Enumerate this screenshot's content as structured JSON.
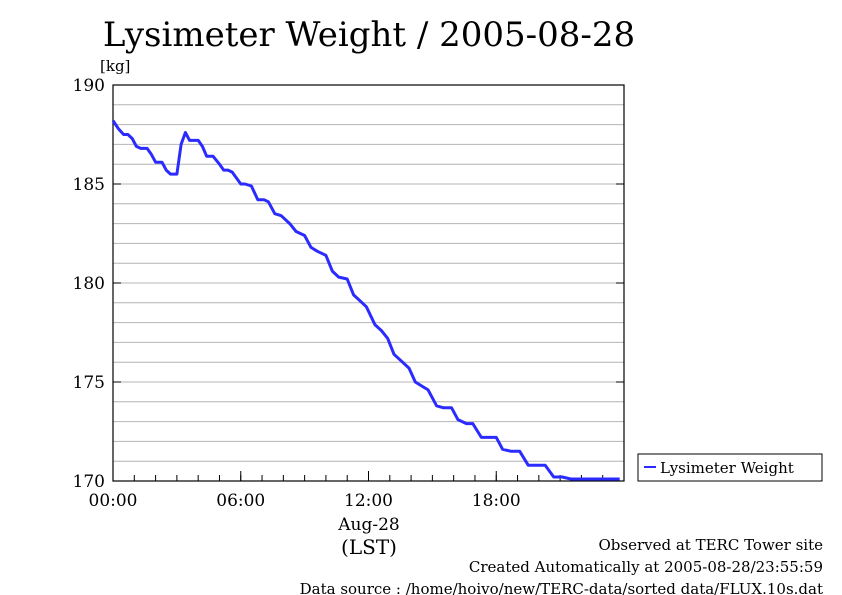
{
  "chart_data": {
    "type": "line",
    "title": "Lysimeter Weight / 2005-08-28",
    "ylabel": "[kg]",
    "xlabel_date": "Aug-28",
    "xlabel_tz": "(LST)",
    "xlim": [
      0,
      24
    ],
    "ylim": [
      170,
      190
    ],
    "x_ticks": [
      {
        "value": 0,
        "label": "00:00"
      },
      {
        "value": 6,
        "label": "06:00"
      },
      {
        "value": 12,
        "label": "12:00"
      },
      {
        "value": 18,
        "label": "18:00"
      }
    ],
    "y_ticks": [
      {
        "value": 170,
        "label": "170"
      },
      {
        "value": 175,
        "label": "175"
      },
      {
        "value": 180,
        "label": "180"
      },
      {
        "value": 185,
        "label": "185"
      },
      {
        "value": 190,
        "label": "190"
      }
    ],
    "y_minor_step": 1,
    "grid": true,
    "legend_position": "right",
    "color": "#2b2bff",
    "series": [
      {
        "name": "Lysimeter Weight",
        "x": [
          0.0,
          0.25,
          0.5,
          0.7,
          0.9,
          1.1,
          1.3,
          1.6,
          1.8,
          2.0,
          2.3,
          2.5,
          2.7,
          3.0,
          3.2,
          3.4,
          3.6,
          3.8,
          4.0,
          4.2,
          4.4,
          4.7,
          5.0,
          5.2,
          5.4,
          5.6,
          6.0,
          6.2,
          6.5,
          6.8,
          7.1,
          7.3,
          7.6,
          7.9,
          8.3,
          8.6,
          9.0,
          9.3,
          9.6,
          10.0,
          10.3,
          10.6,
          11.0,
          11.3,
          11.6,
          11.9,
          12.3,
          12.6,
          12.9,
          13.2,
          13.5,
          13.9,
          14.2,
          14.5,
          14.8,
          15.2,
          15.5,
          15.9,
          16.2,
          16.6,
          16.9,
          17.3,
          17.7,
          18.0,
          18.3,
          18.7,
          19.1,
          19.5,
          19.9,
          20.3,
          20.7,
          21.1,
          21.5,
          21.9,
          22.3,
          22.7,
          23.1,
          23.5,
          23.8
        ],
        "y": [
          188.2,
          187.8,
          187.5,
          187.5,
          187.3,
          186.9,
          186.8,
          186.8,
          186.5,
          186.1,
          186.1,
          185.7,
          185.5,
          185.5,
          187.0,
          187.6,
          187.2,
          187.2,
          187.2,
          186.9,
          186.4,
          186.4,
          186.0,
          185.7,
          185.7,
          185.6,
          185.0,
          185.0,
          184.9,
          184.2,
          184.2,
          184.1,
          183.5,
          183.4,
          183.0,
          182.6,
          182.4,
          181.8,
          181.6,
          181.4,
          180.6,
          180.3,
          180.2,
          179.4,
          179.1,
          178.8,
          177.9,
          177.6,
          177.2,
          176.4,
          176.1,
          175.7,
          175.0,
          174.8,
          174.6,
          173.8,
          173.7,
          173.7,
          173.1,
          172.9,
          172.9,
          172.2,
          172.2,
          172.2,
          171.6,
          171.5,
          171.5,
          170.8,
          170.8,
          170.8,
          170.2,
          170.2,
          170.1,
          170.1,
          170.1,
          170.1,
          170.1,
          170.1,
          170.1
        ]
      }
    ]
  },
  "footer": {
    "line1": "Observed at TERC Tower site",
    "line2": "Created Automatically at 2005-08-28/23:55:59",
    "line3": "Data source : /home/hoivo/new/TERC-data/sorted  data/FLUX.10s.dat"
  }
}
